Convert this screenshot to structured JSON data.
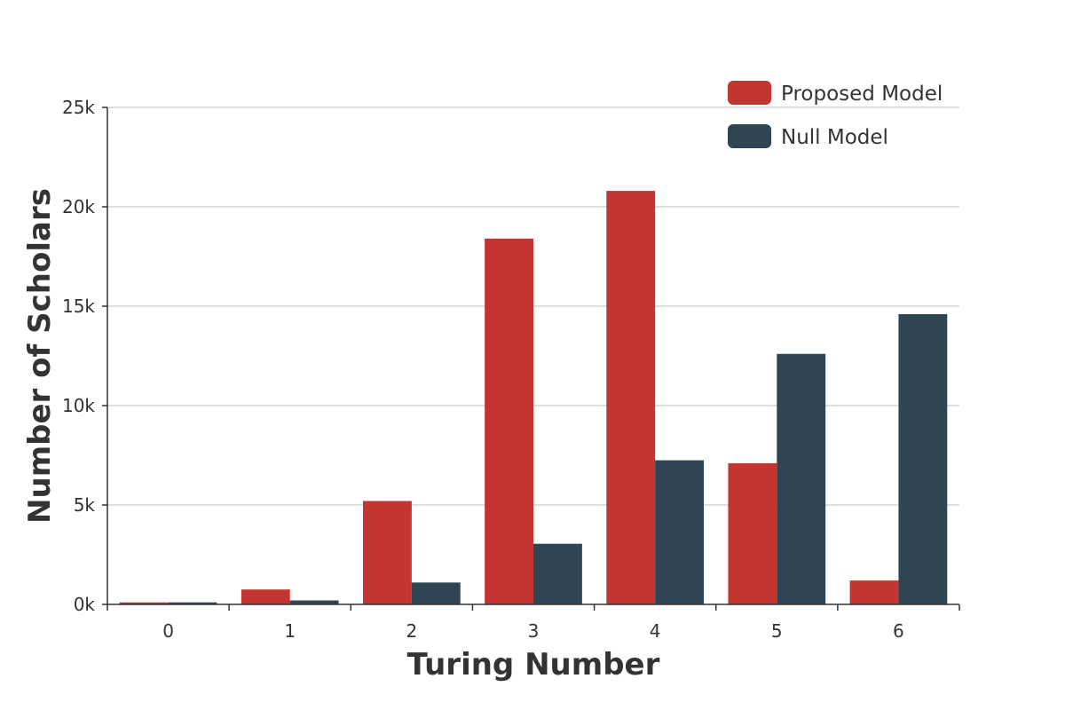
{
  "chart_data": {
    "type": "bar",
    "title": "",
    "xlabel": "Turing Number",
    "ylabel": "Number of Scholars",
    "categories": [
      "0",
      "1",
      "2",
      "3",
      "4",
      "5",
      "6"
    ],
    "series": [
      {
        "name": "Proposed Model",
        "color": "#c23531",
        "values": [
          100,
          750,
          5200,
          18400,
          20800,
          7100,
          1200
        ]
      },
      {
        "name": "Null Model",
        "color": "#2f4554",
        "values": [
          100,
          200,
          1100,
          3050,
          7250,
          12600,
          14600
        ]
      }
    ],
    "ylim": [
      0,
      25000
    ],
    "yticks": [
      {
        "value": 0,
        "label": "0k"
      },
      {
        "value": 5000,
        "label": "5k"
      },
      {
        "value": 10000,
        "label": "10k"
      },
      {
        "value": 15000,
        "label": "15k"
      },
      {
        "value": 20000,
        "label": "20k"
      },
      {
        "value": 25000,
        "label": "25k"
      }
    ],
    "grid": true,
    "legend_position": "top-right"
  }
}
